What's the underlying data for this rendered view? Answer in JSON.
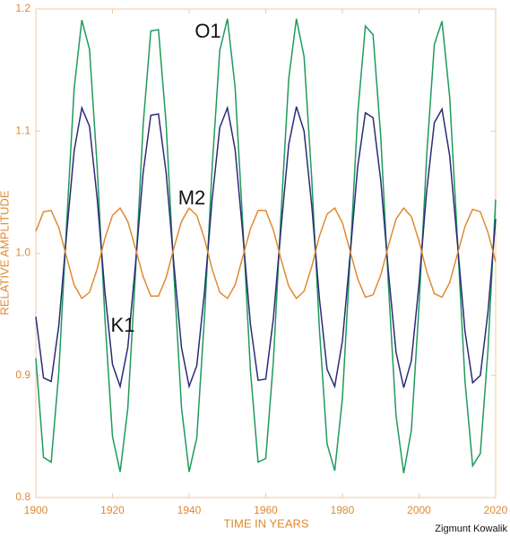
{
  "chart_data": {
    "type": "line",
    "x_label": "TIME IN YEARS",
    "y_label": "RELATIVE AMPLITUDE",
    "credit": "Zigmunt Kowalik",
    "xlim": [
      1900,
      2020
    ],
    "xticks": [
      1900,
      1920,
      1940,
      1960,
      1980,
      2000,
      2020
    ],
    "ylim": [
      0.8,
      1.2
    ],
    "yticks": [
      0.8,
      0.9,
      {
        "value": 1,
        "label": "1.0"
      },
      1.1,
      1.2
    ],
    "grid": false,
    "x": [
      1900,
      1902,
      1904,
      1906,
      1908,
      1910,
      1912,
      1914,
      1916,
      1918,
      1920,
      1922,
      1924,
      1926,
      1928,
      1930,
      1932,
      1934,
      1936,
      1938,
      1940,
      1942,
      1944,
      1946,
      1948,
      1950,
      1952,
      1954,
      1956,
      1958,
      1960,
      1962,
      1964,
      1966,
      1968,
      1970,
      1972,
      1974,
      1976,
      1978,
      1980,
      1982,
      1984,
      1986,
      1988,
      1990,
      1992,
      1994,
      1996,
      1998,
      2000,
      2002,
      2004,
      2006,
      2008,
      2010,
      2012,
      2014,
      2016,
      2018,
      2020
    ],
    "series": [
      {
        "name": "O1",
        "color": "#1f9a5c",
        "values": [
          0.914,
          0.833,
          0.829,
          0.903,
          1.022,
          1.135,
          1.191,
          1.167,
          1.071,
          0.948,
          0.85,
          0.821,
          0.873,
          0.984,
          1.105,
          1.182,
          1.183,
          1.106,
          0.985,
          0.874,
          0.821,
          0.849,
          0.947,
          1.07,
          1.166,
          1.192,
          1.136,
          1.024,
          0.904,
          0.829,
          0.832,
          0.912,
          1.033,
          1.143,
          1.192,
          1.161,
          1.061,
          0.938,
          0.844,
          0.822,
          0.881,
          0.995,
          1.114,
          1.186,
          1.179,
          1.096,
          0.975,
          0.867,
          0.82,
          0.855,
          0.957,
          1.08,
          1.171,
          1.19,
          1.128,
          1.013,
          0.895,
          0.826,
          0.836,
          0.921,
          1.044
        ]
      },
      {
        "name": "K1",
        "color": "#2b2a78",
        "values": [
          0.948,
          0.898,
          0.895,
          0.941,
          1.015,
          1.084,
          1.119,
          1.104,
          1.045,
          0.969,
          0.909,
          0.891,
          0.923,
          0.991,
          1.066,
          1.113,
          1.114,
          1.066,
          0.992,
          0.923,
          0.891,
          0.908,
          0.968,
          1.044,
          1.103,
          1.119,
          1.085,
          1.016,
          0.942,
          0.896,
          0.897,
          0.947,
          1.021,
          1.089,
          1.12,
          1.1,
          1.039,
          0.963,
          0.905,
          0.891,
          0.928,
          0.998,
          1.071,
          1.115,
          1.111,
          1.06,
          0.985,
          0.919,
          0.89,
          0.912,
          0.975,
          1.051,
          1.107,
          1.118,
          1.08,
          1.009,
          0.936,
          0.894,
          0.9,
          0.952,
          1.028
        ]
      },
      {
        "name": "M2",
        "color": "#e08a30",
        "values": [
          1.018,
          1.034,
          1.035,
          1.021,
          0.997,
          0.974,
          0.963,
          0.968,
          0.987,
          1.012,
          1.031,
          1.037,
          1.026,
          1.004,
          0.981,
          0.965,
          0.965,
          0.98,
          1.004,
          1.026,
          1.037,
          1.031,
          1.012,
          0.987,
          0.968,
          0.963,
          0.974,
          0.997,
          1.02,
          1.035,
          1.035,
          1.019,
          0.995,
          0.973,
          0.963,
          0.969,
          0.989,
          1.014,
          1.032,
          1.037,
          1.025,
          1.002,
          0.979,
          0.964,
          0.966,
          0.982,
          1.006,
          1.028,
          1.037,
          1.03,
          1.01,
          0.985,
          0.967,
          0.964,
          0.976,
          0.999,
          1.022,
          1.036,
          1.034,
          1.017,
          0.993
        ]
      }
    ]
  }
}
